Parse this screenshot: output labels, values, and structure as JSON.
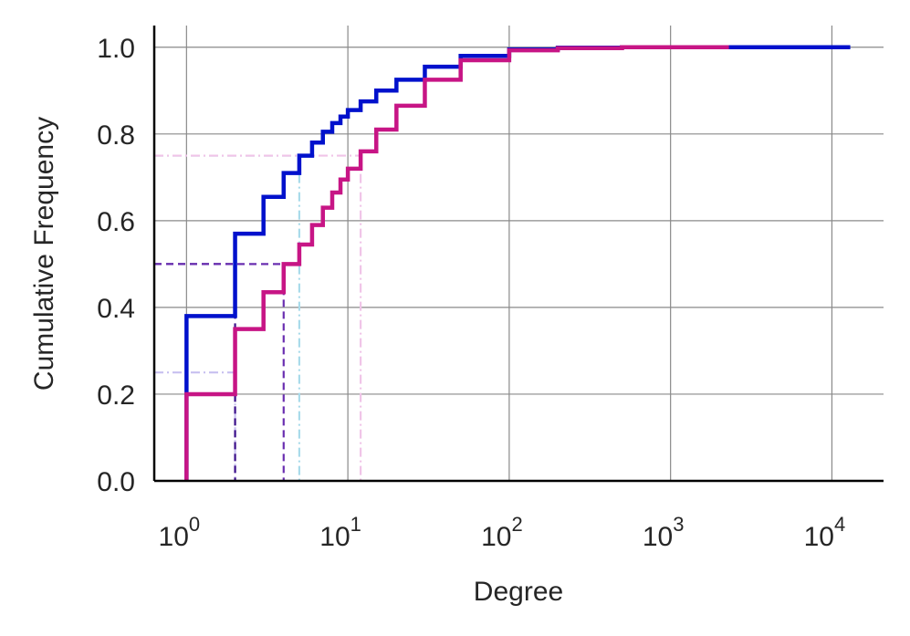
{
  "chart_data": {
    "type": "line",
    "title": "",
    "xlabel": "Degree",
    "ylabel": "Cumulative Frequency",
    "xscale": "log",
    "xlim_log10": [
      -0.2,
      4.32
    ],
    "ylim": [
      0,
      1.05
    ],
    "x_ticks": [
      {
        "base": "10",
        "exp": "0",
        "value": 1
      },
      {
        "base": "10",
        "exp": "1",
        "value": 10
      },
      {
        "base": "10",
        "exp": "2",
        "value": 100
      },
      {
        "base": "10",
        "exp": "3",
        "value": 1000
      },
      {
        "base": "10",
        "exp": "4",
        "value": 10000
      }
    ],
    "y_ticks": [
      "0.0",
      "0.2",
      "0.4",
      "0.6",
      "0.8",
      "1.0"
    ],
    "grid": true,
    "series": [
      {
        "color": "#0011cc",
        "x": [
          1,
          2,
          3,
          4,
          5,
          6,
          7,
          8,
          9,
          10,
          12,
          15,
          20,
          30,
          50,
          100,
          200,
          500,
          1000,
          2000,
          13000
        ],
        "y": [
          0.38,
          0.57,
          0.655,
          0.71,
          0.75,
          0.78,
          0.805,
          0.825,
          0.84,
          0.855,
          0.875,
          0.9,
          0.925,
          0.955,
          0.98,
          0.995,
          0.999,
          1.0,
          1.0,
          1.0,
          1.0
        ]
      },
      {
        "color": "#c71585",
        "x": [
          1,
          2,
          3,
          4,
          5,
          6,
          7,
          8,
          9,
          10,
          12,
          15,
          20,
          30,
          50,
          100,
          200,
          500,
          1000,
          2300
        ],
        "y": [
          0.2,
          0.35,
          0.435,
          0.5,
          0.545,
          0.59,
          0.63,
          0.665,
          0.695,
          0.72,
          0.76,
          0.81,
          0.865,
          0.925,
          0.97,
          0.993,
          0.998,
          1.0,
          1.0,
          1.0
        ]
      }
    ],
    "quantile_markers": [
      {
        "x": 2,
        "y": 0.25,
        "color": "#c8c0f0",
        "style": "dashdot"
      },
      {
        "x": 2,
        "y": 0.5,
        "color": "#3b0f8a",
        "style": "dashed"
      },
      {
        "x": 4,
        "y": 0.5,
        "color": "#6a2fb0",
        "style": "dashed"
      },
      {
        "x": 5,
        "y": 0.75,
        "color": "#a9dbea",
        "style": "dashdot"
      },
      {
        "x": 12,
        "y": 0.75,
        "color": "#f0c4e8",
        "style": "dashdot"
      }
    ]
  }
}
